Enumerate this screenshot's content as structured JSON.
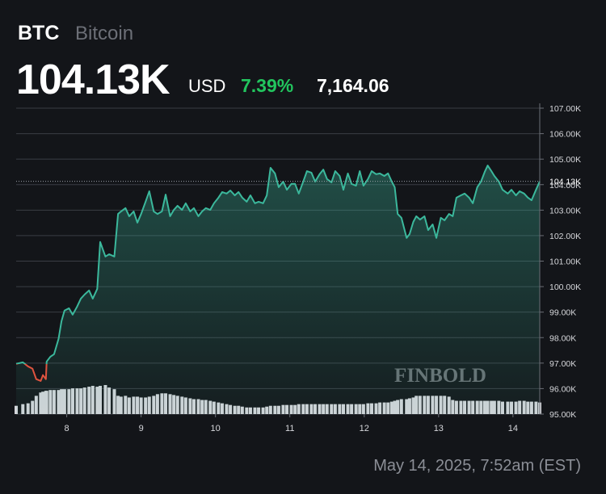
{
  "header": {
    "symbol": "BTC",
    "name": "Bitcoin",
    "price": "104.13K",
    "currency": "USD",
    "change_percent": "7.39%",
    "change": "7,164.06"
  },
  "footer": {
    "timestamp": "May 14, 2025, 7:52am (EST)"
  },
  "chart_data": {
    "type": "line",
    "watermark": "FINBOLD",
    "x": [
      7.32,
      7.41,
      7.48,
      7.54,
      7.59,
      7.65,
      7.68,
      7.72,
      7.73,
      7.78,
      7.83,
      7.89,
      7.93,
      7.97,
      8.03,
      8.08,
      8.14,
      8.19,
      8.24,
      8.3,
      8.35,
      8.41,
      8.45,
      8.52,
      8.57,
      8.64,
      8.69,
      8.73,
      8.79,
      8.84,
      8.9,
      8.95,
      9.0,
      9.06,
      9.11,
      9.17,
      9.22,
      9.28,
      9.33,
      9.39,
      9.44,
      9.49,
      9.55,
      9.6,
      9.66,
      9.71,
      9.77,
      9.82,
      9.87,
      9.93,
      9.98,
      10.04,
      10.09,
      10.15,
      10.2,
      10.26,
      10.31,
      10.36,
      10.42,
      10.47,
      10.53,
      10.58,
      10.64,
      10.69,
      10.74,
      10.8,
      10.85,
      10.91,
      10.96,
      11.02,
      11.07,
      11.12,
      11.18,
      11.23,
      11.29,
      11.34,
      11.4,
      11.45,
      11.5,
      11.56,
      11.61,
      11.67,
      11.72,
      11.78,
      11.83,
      11.89,
      11.94,
      11.99,
      12.05,
      12.1,
      12.16,
      12.21,
      12.27,
      12.32,
      12.37,
      12.41,
      12.45,
      12.5,
      12.57,
      12.61,
      12.66,
      12.7,
      12.75,
      12.81,
      12.86,
      12.92,
      12.97,
      13.03,
      13.08,
      13.14,
      13.19,
      13.24,
      13.3,
      13.35,
      13.41,
      13.46,
      13.52,
      13.57,
      13.62,
      13.66,
      13.71,
      13.75,
      13.81,
      13.86,
      13.93,
      13.98,
      14.04,
      14.09,
      14.15,
      14.2,
      14.25,
      14.31,
      14.36
    ],
    "values": [
      96.97,
      97.03,
      96.87,
      96.78,
      96.37,
      96.3,
      96.53,
      96.37,
      97.06,
      97.25,
      97.35,
      97.95,
      98.65,
      99.06,
      99.15,
      98.9,
      99.22,
      99.53,
      99.69,
      99.85,
      99.53,
      99.91,
      101.75,
      101.18,
      101.27,
      101.18,
      102.85,
      102.95,
      103.08,
      102.76,
      102.95,
      102.51,
      102.85,
      103.33,
      103.74,
      102.95,
      102.85,
      102.95,
      103.61,
      102.76,
      103.01,
      103.17,
      103.01,
      103.27,
      102.95,
      103.08,
      102.76,
      102.95,
      103.08,
      103.01,
      103.27,
      103.49,
      103.71,
      103.65,
      103.77,
      103.58,
      103.71,
      103.49,
      103.33,
      103.58,
      103.27,
      103.33,
      103.27,
      103.58,
      104.66,
      104.44,
      103.9,
      104.12,
      103.8,
      104.03,
      104.03,
      103.65,
      104.12,
      104.53,
      104.47,
      104.12,
      104.41,
      104.59,
      104.22,
      104.09,
      104.53,
      104.34,
      103.8,
      104.44,
      104.03,
      103.96,
      104.53,
      103.96,
      104.22,
      104.53,
      104.41,
      104.44,
      104.34,
      104.44,
      104.12,
      103.9,
      102.85,
      102.7,
      101.91,
      102.06,
      102.54,
      102.76,
      102.63,
      102.76,
      102.22,
      102.44,
      101.91,
      102.7,
      102.6,
      102.85,
      102.76,
      103.49,
      103.58,
      103.65,
      103.49,
      103.27,
      103.9,
      104.12,
      104.5,
      104.75,
      104.53,
      104.34,
      104.12,
      103.8,
      103.65,
      103.8,
      103.58,
      103.74,
      103.65,
      103.49,
      103.39,
      103.8,
      104.13
    ],
    "volume": [
      10,
      12,
      13,
      16,
      22,
      26,
      27,
      28,
      28,
      29,
      29,
      29,
      30,
      30,
      30,
      31,
      31,
      31,
      32,
      33,
      34,
      33,
      34,
      35,
      32,
      30,
      22,
      21,
      22,
      20,
      21,
      21,
      20,
      20,
      21,
      22,
      24,
      25,
      25,
      24,
      23,
      22,
      21,
      20,
      19,
      18,
      18,
      17,
      17,
      16,
      15,
      14,
      13,
      12,
      11,
      10,
      10,
      9,
      8,
      8,
      8,
      8,
      8,
      9,
      10,
      10,
      10,
      11,
      11,
      11,
      11,
      12,
      12,
      12,
      12,
      12,
      12,
      12,
      12,
      12,
      12,
      12,
      12,
      12,
      12,
      12,
      12,
      12,
      13,
      13,
      13,
      14,
      14,
      14,
      15,
      16,
      17,
      18,
      18,
      19,
      20,
      22,
      22,
      22,
      22,
      22,
      22,
      22,
      22,
      21,
      17,
      16,
      16,
      16,
      16,
      16,
      16,
      16,
      16,
      16,
      16,
      16,
      16,
      15,
      15,
      15,
      15,
      16,
      16,
      15,
      15,
      15,
      14
    ],
    "color": "#3bb89c",
    "down_color": "#e0533f",
    "volume_color": "#d4d5da",
    "xlim": [
      7.32,
      14.36
    ],
    "xticks": [
      8,
      9,
      10,
      11,
      12,
      13,
      14
    ],
    "ylim": [
      95,
      107
    ],
    "yticks": [
      {
        "value": 95,
        "label": "95.00K"
      },
      {
        "value": 96,
        "label": "96.00K"
      },
      {
        "value": 97,
        "label": "97.00K"
      },
      {
        "value": 98,
        "label": "98.00K"
      },
      {
        "value": 99,
        "label": "99.00K"
      },
      {
        "value": 100,
        "label": "100.00K"
      },
      {
        "value": 101,
        "label": "101.00K"
      },
      {
        "value": 102,
        "label": "102.00K"
      },
      {
        "value": 103,
        "label": "103.00K"
      },
      {
        "value": 104,
        "label": "104.00K"
      },
      {
        "value": 105,
        "label": "105.00K"
      },
      {
        "value": 106,
        "label": "106.00K"
      },
      {
        "value": 107,
        "label": "107.00K"
      }
    ],
    "grid": true
  }
}
